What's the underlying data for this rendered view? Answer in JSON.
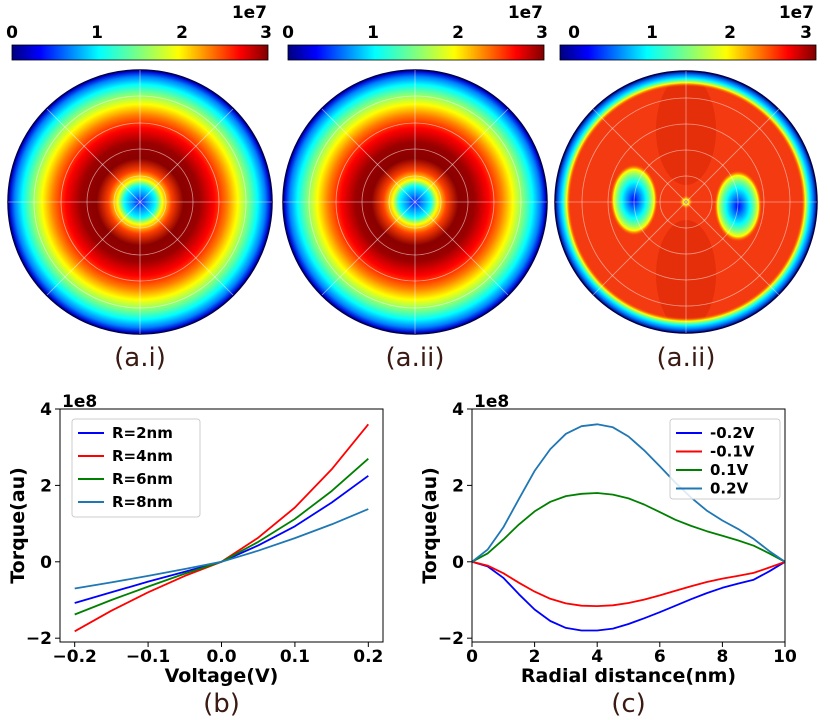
{
  "jet_colors": [
    "#00007f",
    "#0000ff",
    "#007fff",
    "#00ffff",
    "#7fff7f",
    "#ffff00",
    "#ff7f00",
    "#ff0000",
    "#7f0000"
  ],
  "maps": [
    {
      "caption": "(a.i)",
      "colorbar_ticks": [
        "0",
        "1",
        "2",
        "3"
      ],
      "colorbar_exponent": "1e7",
      "pattern": "ring"
    },
    {
      "caption": "(a.ii)",
      "colorbar_ticks": [
        "0",
        "1",
        "2",
        "3"
      ],
      "colorbar_exponent": "1e7",
      "pattern": "ring"
    },
    {
      "caption": "(a.ii)",
      "colorbar_ticks": [
        "0",
        "1",
        "2",
        "3"
      ],
      "colorbar_exponent": "1e7",
      "pattern": "two-lobe"
    }
  ],
  "chart_data": [
    {
      "type": "line",
      "caption": "(b)",
      "xlabel": "Voltage(V)",
      "ylabel": "Torque(au)",
      "y_exponent": "1e8",
      "xlim": [
        -0.22,
        0.22
      ],
      "ylim": [
        -2.1,
        4.0
      ],
      "xticks": [
        -0.2,
        -0.1,
        0.0,
        0.1,
        0.2
      ],
      "xtick_labels": [
        "−0.2",
        "−0.1",
        "0.0",
        "0.1",
        "0.2"
      ],
      "yticks": [
        -2,
        0,
        2,
        4
      ],
      "ytick_labels": [
        "−2",
        "0",
        "2",
        "4"
      ],
      "legend_position": "top-left",
      "x": [
        -0.2,
        -0.15,
        -0.1,
        -0.05,
        0.0,
        0.05,
        0.1,
        0.15,
        0.2
      ],
      "series": [
        {
          "name": "R=2nm",
          "color": "#0000ff",
          "values": [
            -1.08,
            -0.8,
            -0.52,
            -0.26,
            0.0,
            0.43,
            0.93,
            1.55,
            2.25
          ]
        },
        {
          "name": "R=4nm",
          "color": "#ff0000",
          "values": [
            -1.82,
            -1.28,
            -0.8,
            -0.37,
            0.0,
            0.63,
            1.42,
            2.42,
            3.6
          ]
        },
        {
          "name": "R=6nm",
          "color": "#008000",
          "values": [
            -1.38,
            -1.0,
            -0.65,
            -0.31,
            0.0,
            0.52,
            1.12,
            1.85,
            2.7
          ]
        },
        {
          "name": "R=8nm",
          "color": "#1f77b4",
          "values": [
            -0.7,
            -0.54,
            -0.37,
            -0.19,
            0.0,
            0.29,
            0.62,
            0.98,
            1.38
          ]
        }
      ]
    },
    {
      "type": "line",
      "caption": "(c)",
      "xlabel": "Radial distance(nm)",
      "ylabel": "Torque(au)",
      "y_exponent": "1e8",
      "xlim": [
        0,
        10
      ],
      "ylim": [
        -2.1,
        4.0
      ],
      "xticks": [
        0,
        2,
        4,
        6,
        8,
        10
      ],
      "xtick_labels": [
        "0",
        "2",
        "4",
        "6",
        "8",
        "10"
      ],
      "yticks": [
        -2,
        0,
        2,
        4
      ],
      "ytick_labels": [
        "−2",
        "0",
        "2",
        "4"
      ],
      "legend_position": "top-right",
      "x": [
        0,
        0.5,
        1,
        1.5,
        2,
        2.5,
        3,
        3.5,
        4,
        4.5,
        5,
        5.5,
        6,
        6.5,
        7,
        7.5,
        8,
        8.5,
        9,
        9.5,
        10
      ],
      "series": [
        {
          "name": "-0.2V",
          "color": "#0000ff",
          "values": [
            0,
            -0.12,
            -0.42,
            -0.85,
            -1.25,
            -1.55,
            -1.73,
            -1.8,
            -1.8,
            -1.75,
            -1.63,
            -1.48,
            -1.32,
            -1.15,
            -0.98,
            -0.82,
            -0.68,
            -0.57,
            -0.47,
            -0.25,
            0
          ]
        },
        {
          "name": "-0.1V",
          "color": "#ff0000",
          "values": [
            0,
            -0.1,
            -0.3,
            -0.55,
            -0.78,
            -0.97,
            -1.09,
            -1.15,
            -1.16,
            -1.14,
            -1.08,
            -0.99,
            -0.88,
            -0.76,
            -0.64,
            -0.53,
            -0.44,
            -0.37,
            -0.29,
            -0.15,
            0
          ]
        },
        {
          "name": "0.1V",
          "color": "#008000",
          "values": [
            0,
            0.22,
            0.58,
            0.98,
            1.32,
            1.57,
            1.72,
            1.78,
            1.8,
            1.76,
            1.66,
            1.5,
            1.3,
            1.1,
            0.94,
            0.8,
            0.68,
            0.56,
            0.42,
            0.22,
            0
          ]
        },
        {
          "name": "0.2V",
          "color": "#1f77b4",
          "values": [
            0,
            0.32,
            0.9,
            1.65,
            2.38,
            2.95,
            3.35,
            3.55,
            3.6,
            3.52,
            3.28,
            2.92,
            2.5,
            2.07,
            1.68,
            1.34,
            1.08,
            0.86,
            0.6,
            0.28,
            0
          ]
        }
      ]
    }
  ]
}
